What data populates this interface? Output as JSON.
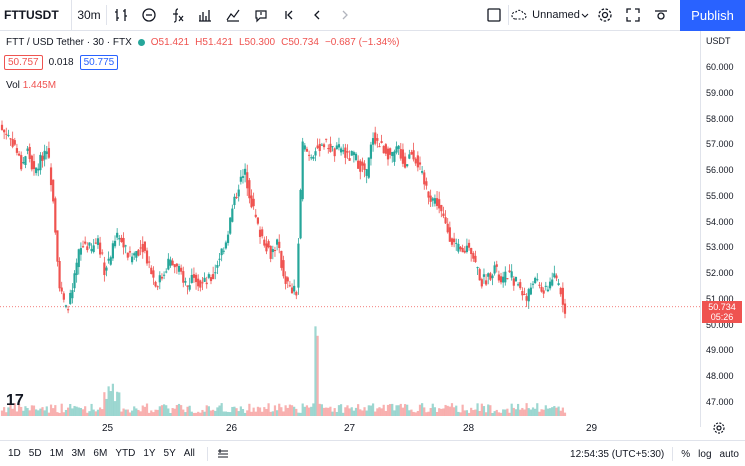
{
  "toolbar": {
    "symbol": "FTTUSDT",
    "interval": "30m",
    "layout_name": "Unnamed",
    "publish_label": "Publish",
    "icons": [
      "bar-chart-icon",
      "indicators-icon",
      "fx-icon",
      "templates-icon",
      "compare-icon",
      "alert-icon",
      "replay-icon",
      "undo-icon",
      "redo-icon",
      "fullscreen-checkbox-icon",
      "cloud-icon",
      "settings-icon",
      "fullscreen-icon",
      "snapshot-icon"
    ]
  },
  "legend": {
    "title": "FTT / USD Tether · 30 · FTX",
    "open": "O51.421",
    "high": "H51.421",
    "low": "L50.300",
    "close": "C50.734",
    "change": "−0.687 (−1.34%)",
    "bid": "50.757",
    "spread": "0.018",
    "ask": "50.775",
    "vol_label": "Vol",
    "vol_value": "1.445M"
  },
  "price_scale": {
    "currency": "USDT",
    "ticks": [
      "60.000",
      "59.000",
      "58.000",
      "57.000",
      "56.000",
      "55.000",
      "54.000",
      "53.000",
      "52.000",
      "51.000",
      "50.000",
      "49.000",
      "48.000",
      "47.000"
    ],
    "last_price": "50.734",
    "countdown": "05:26"
  },
  "time_axis": {
    "labels": [
      "25",
      "26",
      "27",
      "28",
      "29"
    ]
  },
  "bottom_bar": {
    "ranges": [
      "1D",
      "5D",
      "1M",
      "3M",
      "6M",
      "YTD",
      "1Y",
      "5Y",
      "All"
    ],
    "clock": "12:54:35 (UTC+5:30)",
    "percent": "%",
    "log": "log",
    "auto": "auto"
  },
  "colors": {
    "up": "#26a69a",
    "down": "#ef5350",
    "accent": "#2962ff"
  },
  "chart_data": {
    "type": "candlestick",
    "title": "FTT / USD Tether · 30 · FTX",
    "x_labels": [
      "25",
      "26",
      "27",
      "28",
      "29"
    ],
    "ylim": [
      46.5,
      60.5
    ],
    "close_path": [
      57.6,
      57.4,
      57.0,
      56.2,
      56.8,
      55.9,
      56.4,
      57.0,
      55.0,
      51.5,
      50.6,
      51.3,
      52.8,
      53.2,
      52.9,
      53.4,
      52.2,
      52.7,
      53.5,
      53.1,
      52.6,
      52.9,
      53.1,
      52.4,
      51.6,
      51.9,
      52.5,
      52.3,
      52.0,
      51.5,
      52.1,
      51.6,
      51.7,
      51.9,
      52.7,
      53.3,
      54.5,
      55.5,
      55.9,
      54.8,
      53.8,
      53.3,
      52.8,
      53.2,
      52.0,
      51.4,
      51.3,
      57.0,
      56.6,
      56.8,
      57.1,
      57.0,
      56.7,
      56.9,
      56.5,
      56.6,
      56.2,
      55.9,
      57.4,
      57.0,
      56.8,
      56.5,
      56.9,
      56.2,
      56.8,
      56.3,
      55.5,
      55.0,
      54.8,
      54.1,
      53.5,
      53.0,
      52.8,
      53.2,
      52.4,
      51.7,
      51.9,
      52.3,
      51.6,
      52.0,
      51.8,
      51.5,
      51.0,
      51.8,
      51.5,
      51.3,
      51.9,
      51.6,
      50.7
    ],
    "volume_note": "relative volume bars shown at bottom"
  }
}
